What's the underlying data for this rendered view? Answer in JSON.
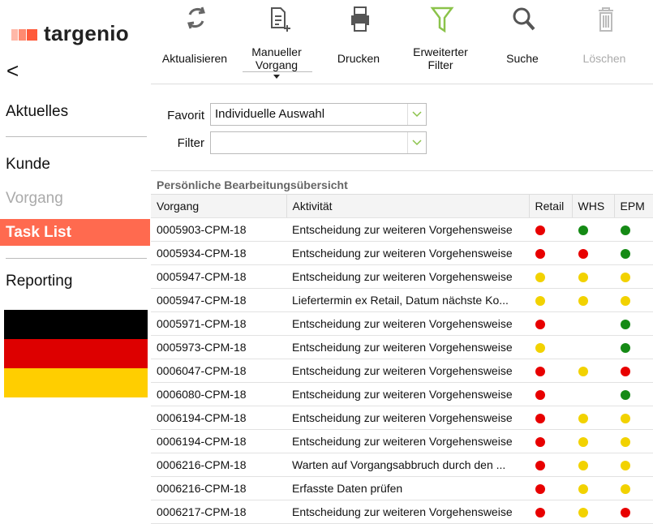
{
  "sidebar": {
    "logo": "targenio",
    "back": "<",
    "menu": [
      {
        "label": "Aktuelles",
        "state": "normal"
      },
      {
        "label": "Kunde",
        "state": "normal"
      },
      {
        "label": "Vorgang",
        "state": "disabled"
      },
      {
        "label": "Task List",
        "state": "active"
      },
      {
        "label": "Reporting",
        "state": "normal"
      }
    ]
  },
  "toolbar": {
    "buttons": [
      {
        "label": "Aktualisieren",
        "icon": "refresh",
        "enabled": true
      },
      {
        "label": "Manueller Vorgang",
        "icon": "new-doc",
        "enabled": true,
        "dropdown": true
      },
      {
        "label": "Drucken",
        "icon": "print",
        "enabled": true
      },
      {
        "label": "Erweiterter Filter",
        "icon": "filter",
        "enabled": true
      },
      {
        "label": "Suche",
        "icon": "search",
        "enabled": true
      },
      {
        "label": "Löschen",
        "icon": "delete",
        "enabled": false
      }
    ]
  },
  "form": {
    "favorit_label": "Favorit",
    "favorit_value": "Individuelle Auswahl",
    "filter_label": "Filter"
  },
  "table": {
    "title": "Persönliche Bearbeitungsübersicht",
    "columns": [
      "Vorgang",
      "Aktivität",
      "Retail",
      "WHS",
      "EPM"
    ],
    "rows": [
      [
        "0005903-CPM-18",
        "Entscheidung zur weiteren Vorgehensweise",
        "red",
        "green",
        "green"
      ],
      [
        "0005934-CPM-18",
        "Entscheidung zur weiteren Vorgehensweise",
        "red",
        "red",
        "green"
      ],
      [
        "0005947-CPM-18",
        "Entscheidung zur weiteren Vorgehensweise",
        "yellow",
        "yellow",
        "yellow"
      ],
      [
        "0005947-CPM-18",
        "Liefertermin ex Retail, Datum nächste Ko...",
        "yellow",
        "yellow",
        "yellow"
      ],
      [
        "0005971-CPM-18",
        "Entscheidung zur weiteren Vorgehensweise",
        "red",
        null,
        "green"
      ],
      [
        "0005973-CPM-18",
        "Entscheidung zur weiteren Vorgehensweise",
        "yellow",
        null,
        "green"
      ],
      [
        "0006047-CPM-18",
        "Entscheidung zur weiteren Vorgehensweise",
        "red",
        "yellow",
        "red"
      ],
      [
        "0006080-CPM-18",
        "Entscheidung zur weiteren Vorgehensweise",
        "red",
        null,
        "green"
      ],
      [
        "0006194-CPM-18",
        "Entscheidung zur weiteren Vorgehensweise",
        "red",
        "yellow",
        "yellow"
      ],
      [
        "0006194-CPM-18",
        "Entscheidung zur weiteren Vorgehensweise",
        "red",
        "yellow",
        "yellow"
      ],
      [
        "0006216-CPM-18",
        "Warten auf Vorgangsabbruch durch den ...",
        "red",
        "yellow",
        "yellow"
      ],
      [
        "0006216-CPM-18",
        "Erfasste Daten prüfen",
        "red",
        "yellow",
        "yellow"
      ],
      [
        "0006217-CPM-18",
        "Entscheidung zur weiteren Vorgehensweise",
        "red",
        "yellow",
        "red"
      ]
    ]
  }
}
